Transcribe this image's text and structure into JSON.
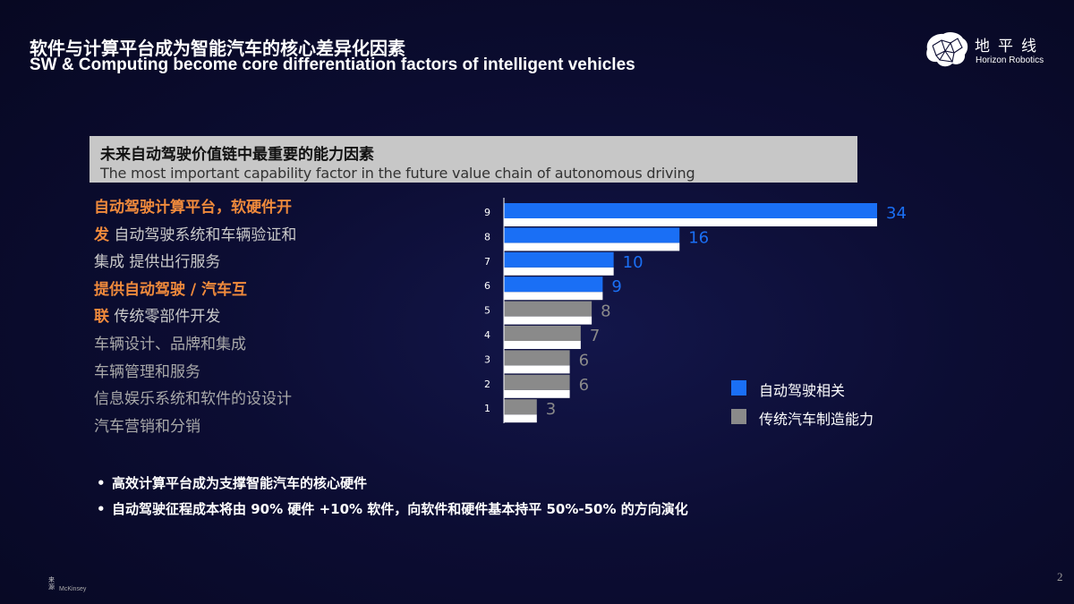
{
  "header": {
    "title_zh": "软件与计算平台成为智能汽车的核心差异化因素",
    "title_en": "SW & Computing become core differentiation factors of intelligent vehicles"
  },
  "logo": {
    "name_zh": "地平线",
    "name_en": "Horizon Robotics"
  },
  "subtitle": {
    "zh": "未来自动驾驶价值链中最重要的能力因素",
    "en": "The most important capability factor in the future value chain of autonomous driving"
  },
  "factors": {
    "line1": "自动驾驶计算平台，软硬件开",
    "line2_hl": "发",
    "line2_rest": " 自动驾驶系统和车辆验证和",
    "line3": "集成 提供出行服务",
    "line4": "提供自动驾驶 / 汽车互",
    "line5_hl": "联",
    "line5_rest": " 传统零部件开发",
    "line6": "车辆设计、品牌和集成",
    "line7": "车辆管理和服务",
    "line8": "信息娱乐系统和软件的设设计",
    "line9": "汽车营销和分销"
  },
  "chart_data": {
    "type": "bar",
    "orientation": "horizontal",
    "categories": [
      "9",
      "8",
      "7",
      "6",
      "5",
      "4",
      "3",
      "2",
      "1"
    ],
    "values": [
      34,
      16,
      10,
      9,
      8,
      7,
      6,
      6,
      3
    ],
    "groups": [
      "auto",
      "auto",
      "auto",
      "auto",
      "traditional",
      "traditional",
      "traditional",
      "traditional",
      "traditional"
    ],
    "series": [
      {
        "name": "自动驾驶相关",
        "color": "#1a6ff5"
      },
      {
        "name": "传统汽车制造能力",
        "color": "#8a8a8a"
      }
    ],
    "xlim": [
      0,
      34
    ],
    "legend_position": "bottom-right",
    "grid": false
  },
  "colors": {
    "auto": "#1a6ff5",
    "traditional": "#8a8a8a",
    "highlight": "#f08a3c"
  },
  "bullets": [
    "高效计算平台成为支撑智能汽车的核心硬件",
    "自动驾驶征程成本将由 90% 硬件 +10% 软件，向软件和硬件基本持平 50%-50% 的方向演化"
  ],
  "bullet_symbol": "•",
  "footer": {
    "source_label": "来源",
    "source_name": "McKinsey",
    "page": "2"
  }
}
